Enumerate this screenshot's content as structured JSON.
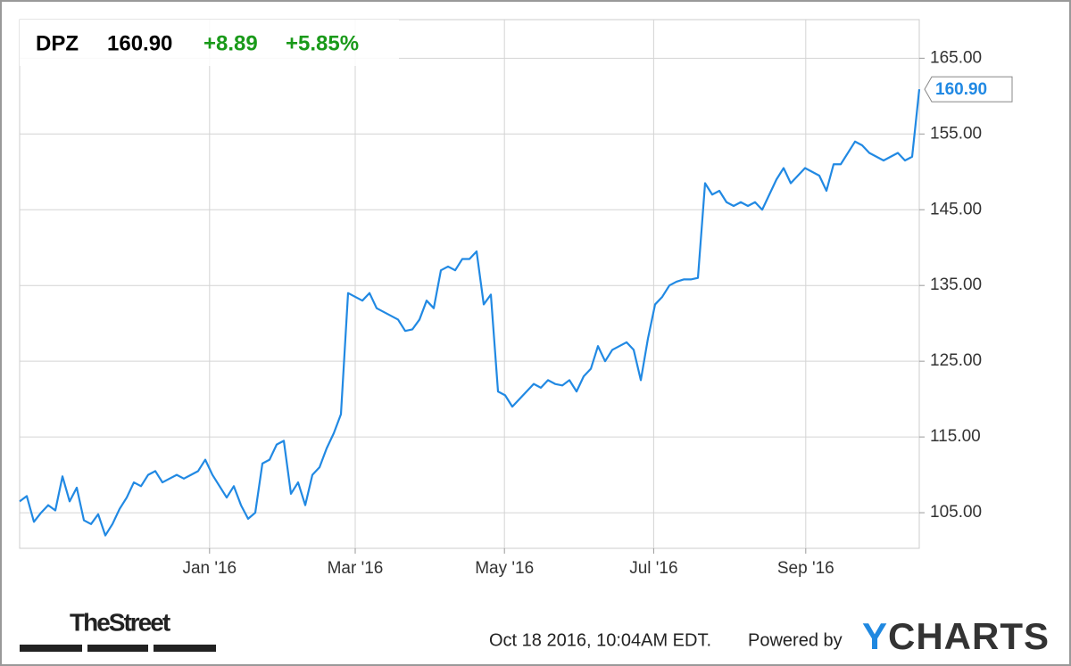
{
  "chart_data": {
    "type": "line",
    "header": {
      "symbol": "DPZ",
      "price": "160.90",
      "change": "+8.89",
      "change_pct": "+5.85%"
    },
    "series": [
      {
        "name": "DPZ",
        "color": "#2189e3",
        "values": [
          106.5,
          107.2,
          103.8,
          105,
          106,
          105.3,
          109.8,
          106.5,
          108.3,
          104,
          103.5,
          104.8,
          102,
          103.5,
          105.5,
          107,
          109,
          108.5,
          110,
          110.5,
          109,
          109.5,
          110,
          109.5,
          110,
          110.5,
          112,
          110,
          108.5,
          107,
          108.5,
          106,
          104.2,
          105,
          111.5,
          112,
          114,
          114.5,
          107.5,
          109,
          106,
          110,
          111,
          113.5,
          115.5,
          118,
          134,
          133.5,
          133,
          134,
          132,
          131.5,
          131,
          130.5,
          129,
          129.2,
          130.5,
          133,
          132,
          137,
          137.5,
          137,
          138.5,
          138.5,
          139.5,
          132.5,
          133.8,
          121,
          120.5,
          119,
          120,
          121,
          122,
          121.5,
          122.5,
          122,
          121.8,
          122.5,
          121,
          123,
          124,
          127,
          125,
          126.5,
          127,
          127.5,
          126.5,
          122.5,
          128,
          132.5,
          133.5,
          135,
          135.5,
          135.8,
          135.8,
          136,
          148.5,
          147,
          147.5,
          146,
          145.5,
          146,
          145.5,
          146,
          145,
          147,
          149,
          150.5,
          148.5,
          149.5,
          150.5,
          150,
          149.5,
          147.5,
          151,
          151,
          152.5,
          154,
          153.5,
          152.5,
          152,
          151.5,
          152,
          152.5,
          151.5,
          152,
          160.9
        ]
      }
    ],
    "last_value": {
      "value": 160.9,
      "label": "160.90"
    },
    "xlim": [
      0,
      126
    ],
    "xticks": [
      {
        "value": 26.6,
        "label": "Jan '16"
      },
      {
        "value": 47,
        "label": "Mar '16"
      },
      {
        "value": 67.9,
        "label": "May '16"
      },
      {
        "value": 88.8,
        "label": "Jul '16"
      },
      {
        "value": 110.1,
        "label": "Sep '16"
      }
    ],
    "ylim": [
      100.3,
      170.1
    ],
    "yticks": [
      {
        "value": 105,
        "label": "105.00"
      },
      {
        "value": 115,
        "label": "115.00"
      },
      {
        "value": 125,
        "label": "125.00"
      },
      {
        "value": 135,
        "label": "135.00"
      },
      {
        "value": 145,
        "label": "145.00"
      },
      {
        "value": 155,
        "label": "155.00"
      },
      {
        "value": 165,
        "label": "165.00"
      }
    ],
    "grid": true,
    "source": "TheStreet",
    "timestamp": "Oct 18 2016, 10:04AM EDT.",
    "credit": "Powered by",
    "logo": "YCHARTS"
  }
}
